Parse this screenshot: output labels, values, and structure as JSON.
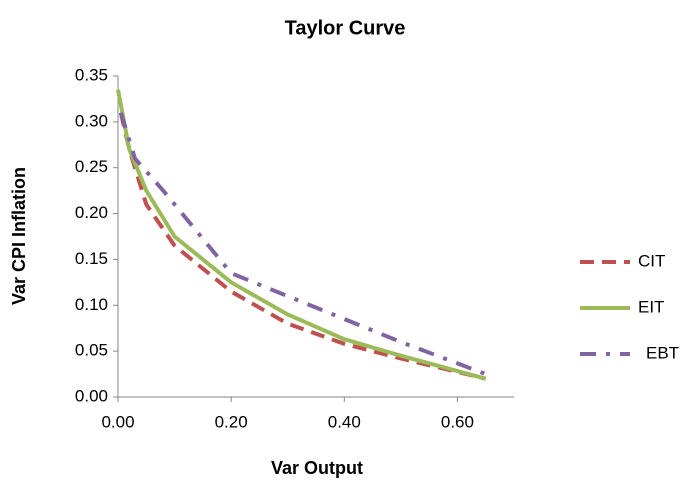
{
  "chart_data": {
    "type": "line",
    "title": "Taylor Curve",
    "x_label": "Var Output",
    "y_label": "Var CPI Inflation",
    "xlim": [
      0,
      0.7
    ],
    "xticks": [
      {
        "value": 0,
        "label": "0.00"
      },
      {
        "value": 0.2,
        "label": "0.20"
      },
      {
        "value": 0.4,
        "label": "0.40"
      },
      {
        "value": 0.6,
        "label": "0.60"
      }
    ],
    "ylim": [
      0,
      0.35
    ],
    "yticks": [
      {
        "value": 0,
        "label": "0.00"
      },
      {
        "value": 0.05,
        "label": "0.05"
      },
      {
        "value": 0.1,
        "label": "0.10"
      },
      {
        "value": 0.15,
        "label": "0.15"
      },
      {
        "value": 0.2,
        "label": "0.20"
      },
      {
        "value": 0.25,
        "label": "0.25"
      },
      {
        "value": 0.3,
        "label": "0.30"
      },
      {
        "value": 0.35,
        "label": "0.35"
      }
    ],
    "legend": "right",
    "series": [
      {
        "name": "CIT",
        "color": "#c0504d",
        "dash": "dash",
        "x": [
          0.005,
          0.02,
          0.05,
          0.1,
          0.2,
          0.3,
          0.4,
          0.5,
          0.65
        ],
        "values": [
          0.31,
          0.27,
          0.21,
          0.165,
          0.115,
          0.08,
          0.058,
          0.042,
          0.02
        ]
      },
      {
        "name": "EIT",
        "color": "#9bbb59",
        "dash": "solid",
        "x": [
          0,
          0.02,
          0.05,
          0.1,
          0.2,
          0.3,
          0.4,
          0.5,
          0.65
        ],
        "values": [
          0.335,
          0.27,
          0.225,
          0.175,
          0.125,
          0.09,
          0.063,
          0.045,
          0.02
        ]
      },
      {
        "name": "EBT",
        "color": "#8064a2",
        "dash": "dashdot",
        "x": [
          0.005,
          0.03,
          0.08,
          0.2,
          0.3,
          0.4,
          0.5,
          0.65
        ],
        "values": [
          0.31,
          0.26,
          0.225,
          0.135,
          0.11,
          0.085,
          0.06,
          0.025
        ]
      }
    ]
  }
}
